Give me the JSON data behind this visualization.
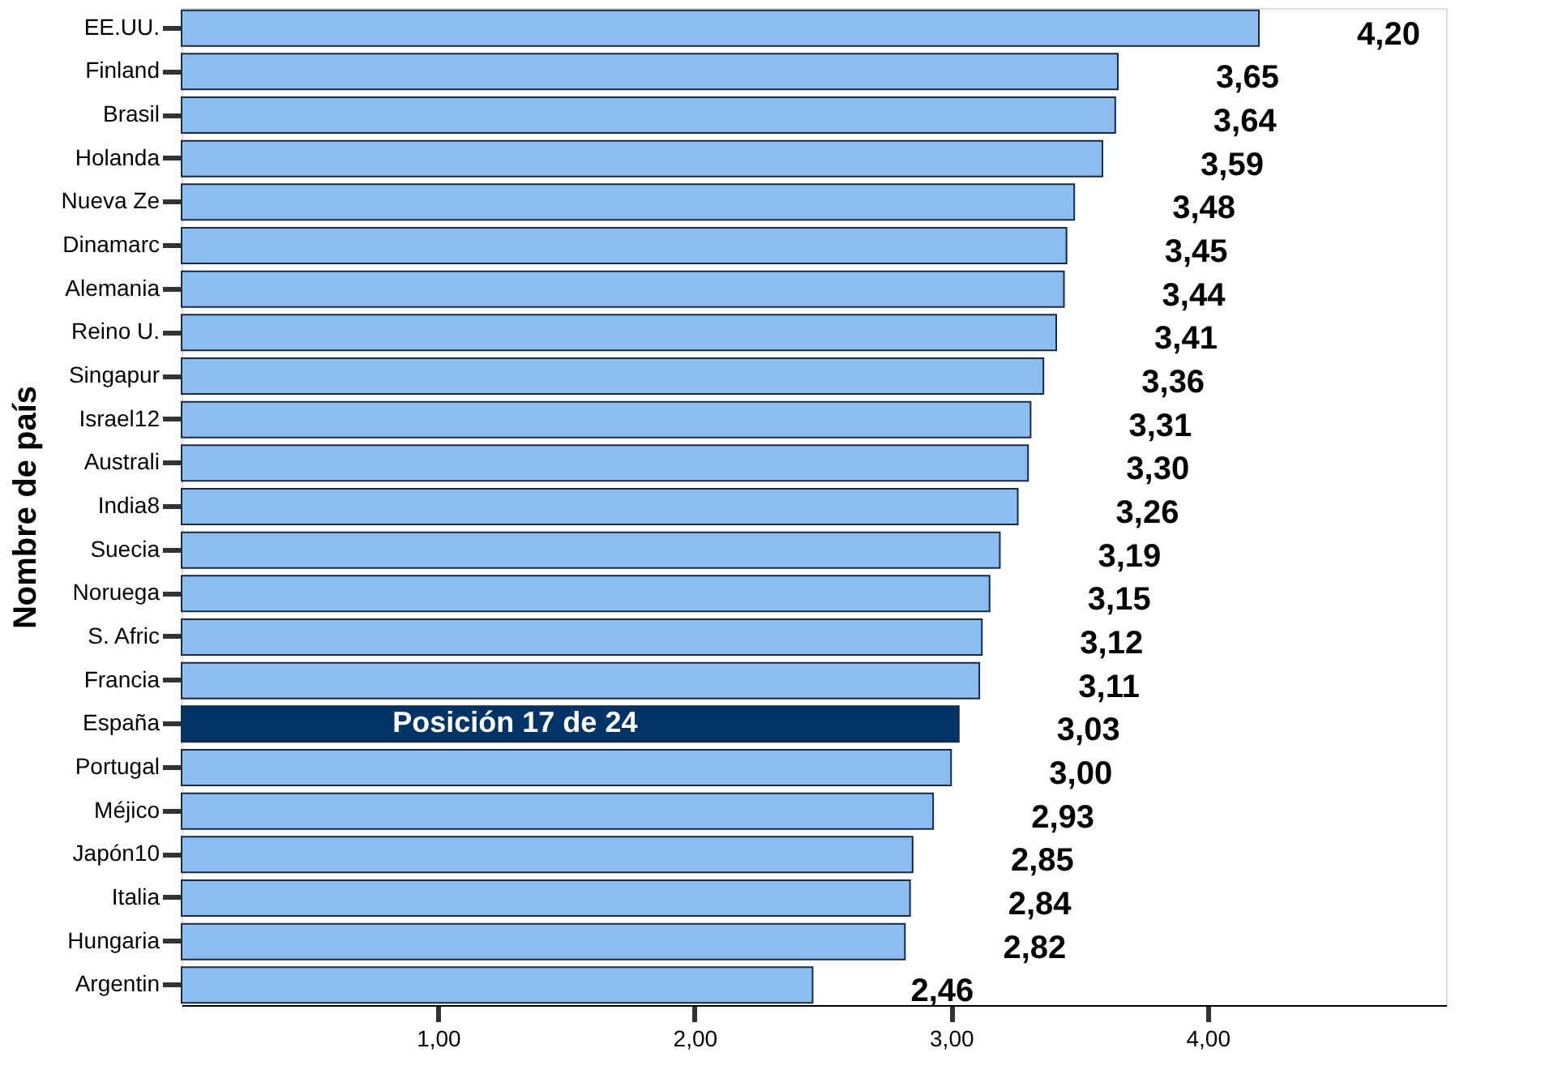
{
  "chart_data": {
    "type": "bar",
    "orientation": "horizontal",
    "ylabel": "Nombre de país",
    "categories": [
      "EE.UU.",
      "Finland",
      "Brasil",
      "Holanda",
      "Nueva Ze",
      "Dinamarc",
      "Alemania",
      "Reino U.",
      "Singapur",
      "Israel12",
      "Australi",
      "India8",
      "Suecia",
      "Noruega",
      "S. Afric",
      "Francia",
      "España",
      "Portugal",
      "Méjico",
      "Japón10",
      "Italia",
      "Hungaria",
      "Argentin"
    ],
    "values": [
      4.2,
      3.65,
      3.64,
      3.59,
      3.48,
      3.45,
      3.44,
      3.41,
      3.36,
      3.31,
      3.3,
      3.26,
      3.19,
      3.15,
      3.12,
      3.11,
      3.03,
      3.0,
      2.93,
      2.85,
      2.84,
      2.82,
      2.46
    ],
    "value_labels": [
      "4,20",
      "3,65",
      "3,64",
      "3,59",
      "3,48",
      "3,45",
      "3,44",
      "3,41",
      "3,36",
      "3,31",
      "3,30",
      "3,26",
      "3,19",
      "3,15",
      "3,12",
      "3,11",
      "3,03",
      "3,00",
      "2,93",
      "2,85",
      "2,84",
      "2,82",
      "2,46"
    ],
    "colors": [
      "#8dbdf0",
      "#8dbdf0",
      "#8dbdf0",
      "#8dbdf0",
      "#8dbdf0",
      "#8dbdf0",
      "#8dbdf0",
      "#8dbdf0",
      "#8dbdf0",
      "#8dbdf0",
      "#8dbdf0",
      "#8dbdf0",
      "#8dbdf0",
      "#8dbdf0",
      "#8dbdf0",
      "#8dbdf0",
      "#003366",
      "#8dbdf0",
      "#8dbdf0",
      "#8dbdf0",
      "#8dbdf0",
      "#8dbdf0",
      "#8dbdf0"
    ],
    "xlim": [
      0,
      4.93
    ],
    "xticks": [
      {
        "value": 1,
        "label": "1,00"
      },
      {
        "value": 2,
        "label": "2,00"
      },
      {
        "value": 3,
        "label": "3,00"
      },
      {
        "value": 4,
        "label": "4,00"
      }
    ],
    "annotations": [
      {
        "text": "Posición 17 de 24",
        "x": 1.3,
        "y": "España"
      }
    ],
    "grid": false
  }
}
